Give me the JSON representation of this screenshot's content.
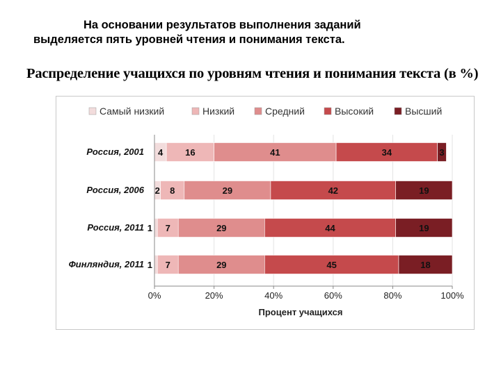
{
  "intro": {
    "line1": "На основании результатов выполнения заданий",
    "line2": "выделяется пять уровней чтения и понимания текста."
  },
  "chart_data": {
    "type": "bar",
    "orientation": "horizontal",
    "stacked": "percent",
    "title": "Распределение учащихся по уровням чтения и понимания текста (в %)",
    "xlabel": "Процент учащихся",
    "ylabel": "",
    "xlim": [
      0,
      100
    ],
    "x_ticks": [
      "0%",
      "20%",
      "40%",
      "60%",
      "80%",
      "100%"
    ],
    "x_tick_values": [
      0,
      20,
      40,
      60,
      80,
      100
    ],
    "grid": true,
    "legend_position": "top",
    "categories": [
      "Россия, 2001",
      "Россия, 2006",
      "Россия, 2011",
      "Финляндия, 2011"
    ],
    "series": [
      {
        "name": "Самый низкий",
        "values": [
          4,
          2,
          1,
          1
        ],
        "color": "#f2dcdc"
      },
      {
        "name": "Низкий",
        "values": [
          16,
          8,
          7,
          7
        ],
        "color": "#eeb7b7"
      },
      {
        "name": "Средний",
        "values": [
          41,
          29,
          29,
          29
        ],
        "color": "#df8d8d"
      },
      {
        "name": "Высокий",
        "values": [
          34,
          42,
          44,
          45
        ],
        "color": "#c54a4c"
      },
      {
        "name": "Высший",
        "values": [
          3,
          19,
          19,
          18
        ],
        "color": "#7a1e24"
      }
    ]
  }
}
